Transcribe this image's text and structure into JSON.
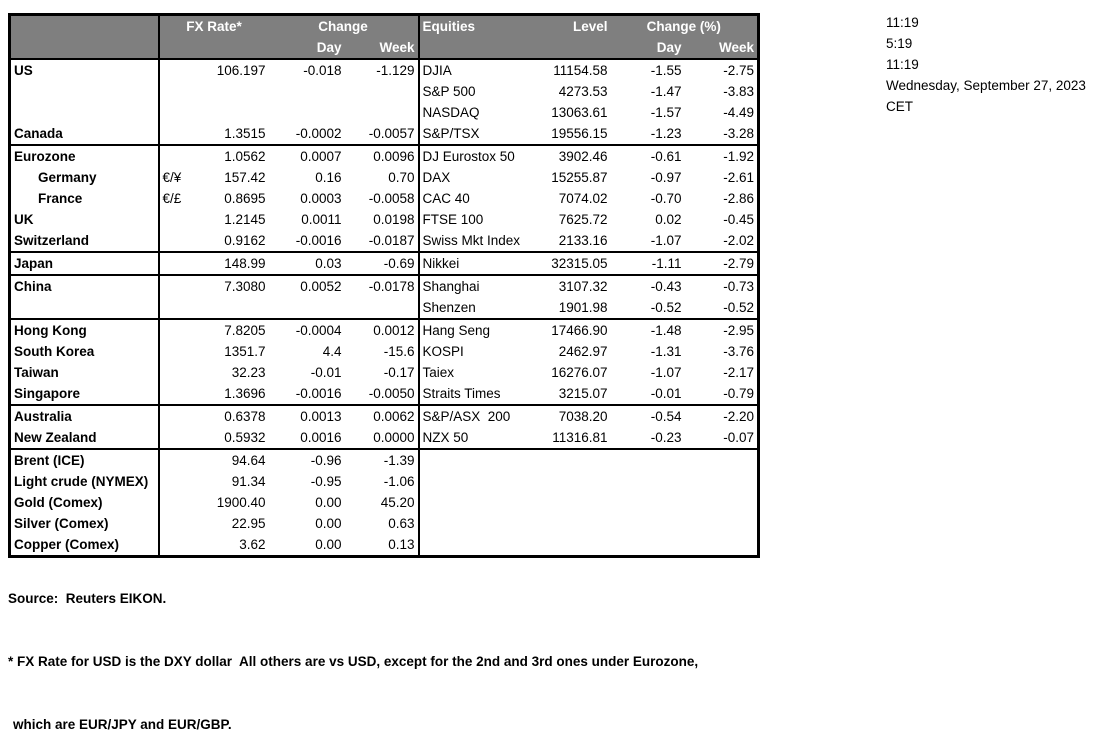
{
  "table": {
    "header": {
      "fx_rate": "FX Rate*",
      "change": "Change",
      "day": "Day",
      "week": "Week",
      "equities": "Equities",
      "level": "Level",
      "change_pct": "Change (%)",
      "eq_day": "Day",
      "eq_week": "Week"
    },
    "rows": [
      {
        "name": "US",
        "symbol": "",
        "fx_rate": "106.197",
        "fx_day": "-0.018",
        "fx_week": "-1.129",
        "equity": "DJIA",
        "level": "11154.58",
        "eq_day": "-1.55",
        "eq_week": "-2.75",
        "indent": false,
        "section_end": false
      },
      {
        "name": "",
        "symbol": "",
        "fx_rate": "",
        "fx_day": "",
        "fx_week": "",
        "equity": "S&P 500",
        "level": "4273.53",
        "eq_day": "-1.47",
        "eq_week": "-3.83",
        "indent": false,
        "section_end": false
      },
      {
        "name": "",
        "symbol": "",
        "fx_rate": "",
        "fx_day": "",
        "fx_week": "",
        "equity": "NASDAQ",
        "level": "13063.61",
        "eq_day": "-1.57",
        "eq_week": "-4.49",
        "indent": false,
        "section_end": false
      },
      {
        "name": "Canada",
        "symbol": "",
        "fx_rate": "1.3515",
        "fx_day": "-0.0002",
        "fx_week": "-0.0057",
        "equity": "S&P/TSX",
        "level": "19556.15",
        "eq_day": "-1.23",
        "eq_week": "-3.28",
        "indent": false,
        "section_end": true
      },
      {
        "name": "Eurozone",
        "symbol": "",
        "fx_rate": "1.0562",
        "fx_day": "0.0007",
        "fx_week": "0.0096",
        "equity": "DJ Eurostox 50",
        "level": "3902.46",
        "eq_day": "-0.61",
        "eq_week": "-1.92",
        "indent": false,
        "section_end": false
      },
      {
        "name": "Germany",
        "symbol": "€/¥",
        "fx_rate": "157.42",
        "fx_day": "0.16",
        "fx_week": "0.70",
        "equity": "DAX",
        "level": "15255.87",
        "eq_day": "-0.97",
        "eq_week": "-2.61",
        "indent": true,
        "section_end": false
      },
      {
        "name": "France",
        "symbol": "€/£",
        "fx_rate": "0.8695",
        "fx_day": "0.0003",
        "fx_week": "-0.0058",
        "equity": "CAC 40",
        "level": "7074.02",
        "eq_day": "-0.70",
        "eq_week": "-2.86",
        "indent": true,
        "section_end": false
      },
      {
        "name": "UK",
        "symbol": "",
        "fx_rate": "1.2145",
        "fx_day": "0.0011",
        "fx_week": "0.0198",
        "equity": "FTSE 100",
        "level": "7625.72",
        "eq_day": "0.02",
        "eq_week": "-0.45",
        "indent": false,
        "section_end": false
      },
      {
        "name": "Switzerland",
        "symbol": "",
        "fx_rate": "0.9162",
        "fx_day": "-0.0016",
        "fx_week": "-0.0187",
        "equity": "Swiss Mkt Index",
        "level": "2133.16",
        "eq_day": "-1.07",
        "eq_week": "-2.02",
        "indent": false,
        "section_end": true
      },
      {
        "name": "Japan",
        "symbol": "",
        "fx_rate": "148.99",
        "fx_day": "0.03",
        "fx_week": "-0.69",
        "equity": "Nikkei",
        "level": "32315.05",
        "eq_day": "-1.11",
        "eq_week": "-2.79",
        "indent": false,
        "section_end": true
      },
      {
        "name": "China",
        "symbol": "",
        "fx_rate": "7.3080",
        "fx_day": "0.0052",
        "fx_week": "-0.0178",
        "equity": "Shanghai",
        "level": "3107.32",
        "eq_day": "-0.43",
        "eq_week": "-0.73",
        "indent": false,
        "section_end": false
      },
      {
        "name": "",
        "symbol": "",
        "fx_rate": "",
        "fx_day": "",
        "fx_week": "",
        "equity": "Shenzen",
        "level": "1901.98",
        "eq_day": "-0.52",
        "eq_week": "-0.52",
        "indent": false,
        "section_end": true
      },
      {
        "name": "Hong Kong",
        "symbol": "",
        "fx_rate": "7.8205",
        "fx_day": "-0.0004",
        "fx_week": "0.0012",
        "equity": "Hang Seng",
        "level": "17466.90",
        "eq_day": "-1.48",
        "eq_week": "-2.95",
        "indent": false,
        "section_end": false
      },
      {
        "name": "South Korea",
        "symbol": "",
        "fx_rate": "1351.7",
        "fx_day": "4.4",
        "fx_week": "-15.6",
        "equity": "KOSPI",
        "level": "2462.97",
        "eq_day": "-1.31",
        "eq_week": "-3.76",
        "indent": false,
        "section_end": false
      },
      {
        "name": "Taiwan",
        "symbol": "",
        "fx_rate": "32.23",
        "fx_day": "-0.01",
        "fx_week": "-0.17",
        "equity": "Taiex",
        "level": "16276.07",
        "eq_day": "-1.07",
        "eq_week": "-2.17",
        "indent": false,
        "section_end": false
      },
      {
        "name": "Singapore",
        "symbol": "",
        "fx_rate": "1.3696",
        "fx_day": "-0.0016",
        "fx_week": "-0.0050",
        "equity": "Straits Times",
        "level": "3215.07",
        "eq_day": "-0.01",
        "eq_week": "-0.79",
        "indent": false,
        "section_end": true
      },
      {
        "name": "Australia",
        "symbol": "",
        "fx_rate": "0.6378",
        "fx_day": "0.0013",
        "fx_week": "0.0062",
        "equity": "S&P/ASX  200",
        "level": "7038.20",
        "eq_day": "-0.54",
        "eq_week": "-2.20",
        "indent": false,
        "section_end": false
      },
      {
        "name": "New Zealand",
        "symbol": "",
        "fx_rate": "0.5932",
        "fx_day": "0.0016",
        "fx_week": "0.0000",
        "equity": "NZX 50",
        "level": "11316.81",
        "eq_day": "-0.23",
        "eq_week": "-0.07",
        "indent": false,
        "section_end": true
      },
      {
        "name": "Brent (ICE)",
        "symbol": "",
        "fx_rate": "94.64",
        "fx_day": "-0.96",
        "fx_week": "-1.39",
        "equity": "",
        "level": "",
        "eq_day": "",
        "eq_week": "",
        "indent": false,
        "section_end": false
      },
      {
        "name": "Light crude (NYMEX)",
        "symbol": "",
        "fx_rate": "91.34",
        "fx_day": "-0.95",
        "fx_week": "-1.06",
        "equity": "",
        "level": "",
        "eq_day": "",
        "eq_week": "",
        "indent": false,
        "section_end": false
      },
      {
        "name": "Gold (Comex)",
        "symbol": "",
        "fx_rate": "1900.40",
        "fx_day": "0.00",
        "fx_week": "45.20",
        "equity": "",
        "level": "",
        "eq_day": "",
        "eq_week": "",
        "indent": false,
        "section_end": false
      },
      {
        "name": "Silver (Comex)",
        "symbol": "",
        "fx_rate": "22.95",
        "fx_day": "0.00",
        "fx_week": "0.63",
        "equity": "",
        "level": "",
        "eq_day": "",
        "eq_week": "",
        "indent": false,
        "section_end": false
      },
      {
        "name": "Copper (Comex)",
        "symbol": "",
        "fx_rate": "3.62",
        "fx_day": "0.00",
        "fx_week": "0.13",
        "equity": "",
        "level": "",
        "eq_day": "",
        "eq_week": "",
        "indent": false,
        "section_end": false
      }
    ]
  },
  "timestamps": {
    "lines": [
      "11:19",
      "5:19",
      "11:19",
      "Wednesday, September 27, 2023",
      "CET"
    ]
  },
  "footer": {
    "source": "Source:  Reuters EIKON.",
    "note1": "* FX Rate for USD is the DXY dollar  All others are vs USD, except for the 2nd and 3rd ones under Eurozone,",
    "note2": "which are EUR/JPY and EUR/GBP."
  }
}
